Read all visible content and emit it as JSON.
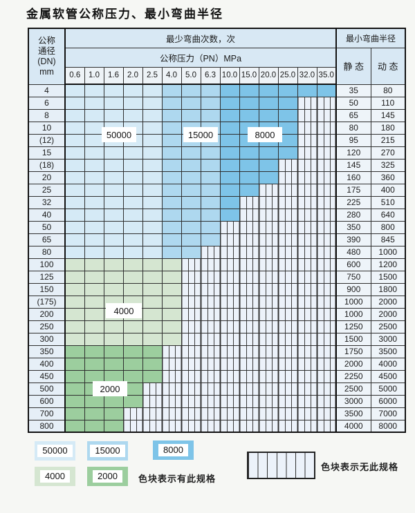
{
  "title": "金属软管公称压力、最小弯曲半径",
  "table": {
    "dn_header_lines": [
      "公称",
      "通径",
      "(DN)",
      "mm"
    ],
    "cycles_header": "最少弯曲次数，次",
    "pressure_header": "公称压力（PN）MPa",
    "radius_header": "最小弯曲半径",
    "static_header": "静 态",
    "dynamic_header": "动 态"
  },
  "chart_data": {
    "type": "heatmap",
    "title": "金属软管公称压力、最小弯曲半径",
    "x_label": "公称压力（PN）MPa",
    "x_categories": [
      "0.6",
      "1.0",
      "1.6",
      "2.0",
      "2.5",
      "4.0",
      "5.0",
      "6.3",
      "10.0",
      "15.0",
      "20.0",
      "25.0",
      "32.0",
      "35.0"
    ],
    "blue_shade_breaks": {
      "c50000_max_col": "2.5",
      "c15000_max_col": "6.3"
    },
    "regions": [
      {
        "cycles": "50000",
        "color": "#d5eaf6",
        "columns": "0.6-2.5",
        "rows": "4-80"
      },
      {
        "cycles": "15000",
        "color": "#aed8ef",
        "columns": "4.0-6.3",
        "rows": "4-80"
      },
      {
        "cycles": "8000",
        "color": "#7ec4e8",
        "columns": "10.0-35.0",
        "rows": "4-80"
      },
      {
        "cycles": "4000",
        "color": "#d5e6d1",
        "columns": "0.6-4.0",
        "rows": "100-300"
      },
      {
        "cycles": "2000",
        "color": "#9cce9e",
        "columns": "0.6-2.5",
        "rows": "350-800"
      }
    ],
    "rows": [
      {
        "dn": "4",
        "band": "blue",
        "colored_to": "35.0",
        "static": "35",
        "dynamic": "80"
      },
      {
        "dn": "6",
        "band": "blue",
        "colored_to": "25.0",
        "static": "50",
        "dynamic": "110"
      },
      {
        "dn": "8",
        "band": "blue",
        "colored_to": "25.0",
        "static": "65",
        "dynamic": "145"
      },
      {
        "dn": "10",
        "band": "blue",
        "colored_to": "25.0",
        "static": "80",
        "dynamic": "180"
      },
      {
        "dn": "(12)",
        "band": "blue",
        "colored_to": "25.0",
        "static": "95",
        "dynamic": "215"
      },
      {
        "dn": "15",
        "band": "blue",
        "colored_to": "25.0",
        "static": "120",
        "dynamic": "270"
      },
      {
        "dn": "(18)",
        "band": "blue",
        "colored_to": "20.0",
        "static": "145",
        "dynamic": "325"
      },
      {
        "dn": "20",
        "band": "blue",
        "colored_to": "20.0",
        "static": "160",
        "dynamic": "360"
      },
      {
        "dn": "25",
        "band": "blue",
        "colored_to": "15.0",
        "static": "175",
        "dynamic": "400"
      },
      {
        "dn": "32",
        "band": "blue",
        "colored_to": "10.0",
        "static": "225",
        "dynamic": "510"
      },
      {
        "dn": "40",
        "band": "blue",
        "colored_to": "10.0",
        "static": "280",
        "dynamic": "640"
      },
      {
        "dn": "50",
        "band": "blue",
        "colored_to": "6.3",
        "static": "350",
        "dynamic": "800"
      },
      {
        "dn": "65",
        "band": "blue",
        "colored_to": "6.3",
        "static": "390",
        "dynamic": "845"
      },
      {
        "dn": "80",
        "band": "blue",
        "colored_to": "5.0",
        "static": "480",
        "dynamic": "1000"
      },
      {
        "dn": "100",
        "band": "4000",
        "colored_to": "4.0",
        "static": "600",
        "dynamic": "1200"
      },
      {
        "dn": "125",
        "band": "4000",
        "colored_to": "4.0",
        "static": "750",
        "dynamic": "1500"
      },
      {
        "dn": "150",
        "band": "4000",
        "colored_to": "4.0",
        "static": "900",
        "dynamic": "1800"
      },
      {
        "dn": "(175)",
        "band": "4000",
        "colored_to": "4.0",
        "static": "1000",
        "dynamic": "2000"
      },
      {
        "dn": "200",
        "band": "4000",
        "colored_to": "4.0",
        "static": "1000",
        "dynamic": "2000"
      },
      {
        "dn": "250",
        "band": "4000",
        "colored_to": "4.0",
        "static": "1250",
        "dynamic": "2500"
      },
      {
        "dn": "300",
        "band": "4000",
        "colored_to": "4.0",
        "static": "1500",
        "dynamic": "3000"
      },
      {
        "dn": "350",
        "band": "2000",
        "colored_to": "2.5",
        "static": "1750",
        "dynamic": "3500"
      },
      {
        "dn": "400",
        "band": "2000",
        "colored_to": "2.5",
        "static": "2000",
        "dynamic": "4000"
      },
      {
        "dn": "450",
        "band": "2000",
        "colored_to": "2.5",
        "static": "2250",
        "dynamic": "4500"
      },
      {
        "dn": "500",
        "band": "2000",
        "colored_to": "2.0",
        "static": "2500",
        "dynamic": "5000"
      },
      {
        "dn": "600",
        "band": "2000",
        "colored_to": "2.0",
        "static": "3000",
        "dynamic": "6000"
      },
      {
        "dn": "700",
        "band": "2000",
        "colored_to": "1.6",
        "static": "3500",
        "dynamic": "7000"
      },
      {
        "dn": "800",
        "band": "2000",
        "colored_to": "1.6",
        "static": "4000",
        "dynamic": "8000"
      }
    ]
  },
  "overlay_labels": [
    {
      "text": "50000"
    },
    {
      "text": "15000"
    },
    {
      "text": "8000"
    },
    {
      "text": "4000"
    },
    {
      "text": "2000"
    }
  ],
  "legend": {
    "items": [
      {
        "label": "50000",
        "color": "#d5eaf6"
      },
      {
        "label": "15000",
        "color": "#aed8ef"
      },
      {
        "label": "8000",
        "color": "#7ec4e8"
      },
      {
        "label": "4000",
        "color": "#d5e6d1"
      },
      {
        "label": "2000",
        "color": "#9cce9e"
      }
    ],
    "has_spec_text": "色块表示有此规格",
    "no_spec_text": "色块表示无此规格"
  }
}
